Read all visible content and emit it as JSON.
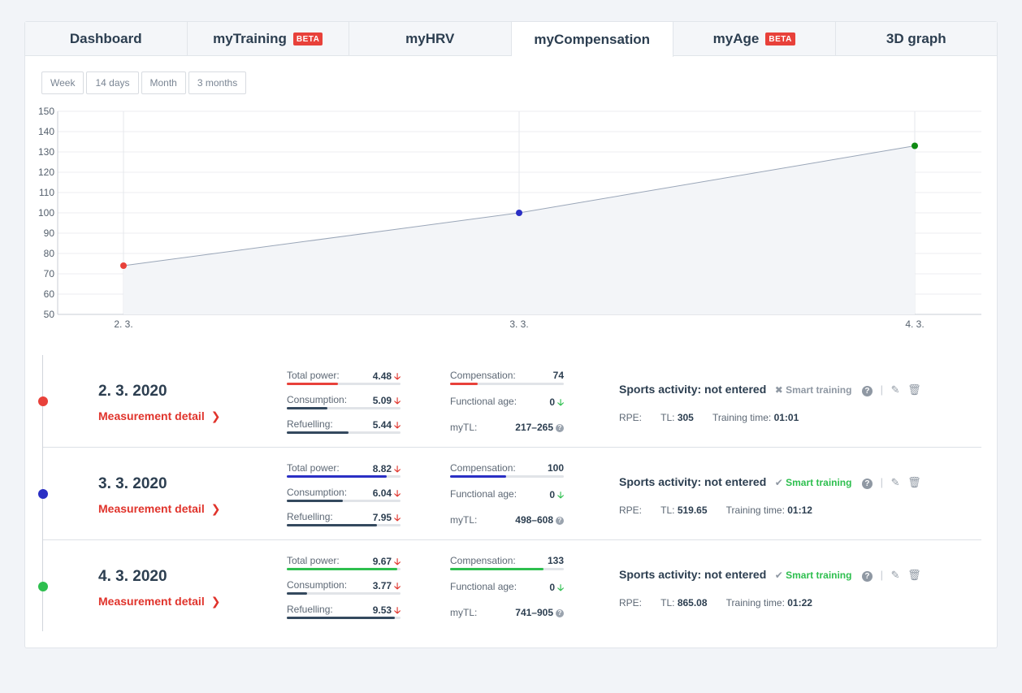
{
  "tabs": [
    {
      "label": "Dashboard",
      "beta": false,
      "active": false
    },
    {
      "label": "myTraining",
      "beta": true,
      "active": false
    },
    {
      "label": "myHRV",
      "beta": false,
      "active": false
    },
    {
      "label": "myCompensation",
      "beta": false,
      "active": true
    },
    {
      "label": "myAge",
      "beta": true,
      "active": false
    },
    {
      "label": "3D graph",
      "beta": false,
      "active": false
    }
  ],
  "beta_label": "BETA",
  "ranges": [
    "Week",
    "14 days",
    "Month",
    "3 months"
  ],
  "chart_data": {
    "type": "area",
    "categories": [
      "2. 3.",
      "3. 3.",
      "4. 3."
    ],
    "values": [
      74,
      100,
      133
    ],
    "point_colors": [
      "#e8413a",
      "#2a2fc4",
      "#0f8a12"
    ],
    "ylim": [
      50,
      150
    ],
    "yticks": [
      50,
      60,
      70,
      80,
      90,
      100,
      110,
      120,
      130,
      140,
      150
    ],
    "grid": true,
    "line_color": "#9aa6b8",
    "fill_color": "#f3f5f8"
  },
  "measurement_detail_label": "Measurement detail",
  "labels": {
    "total_power": "Total power:",
    "consumption": "Consumption:",
    "refuelling": "Refuelling:",
    "compensation": "Compensation:",
    "functional_age": "Functional age:",
    "mytl": "myTL:",
    "sports_activity": "Sports activity: not entered",
    "smart_training": "Smart training",
    "rpe": "RPE:",
    "tl": "TL:",
    "training_time": "Training time:"
  },
  "measurements": [
    {
      "date": "2. 3. 2020",
      "color": "#e8413a",
      "total_power": "4.48",
      "total_power_pct": 0.45,
      "consumption": "5.09",
      "consumption_pct": 0.36,
      "refuelling": "5.44",
      "refuelling_pct": 0.54,
      "compensation": "74",
      "compensation_pct": 0.24,
      "functional_age": "0",
      "mytl": "217–265",
      "smart_training_enabled": false,
      "tl": "305",
      "training_time": "01:01"
    },
    {
      "date": "3. 3. 2020",
      "color": "#2a2fc4",
      "total_power": "8.82",
      "total_power_pct": 0.88,
      "consumption": "6.04",
      "consumption_pct": 0.49,
      "refuelling": "7.95",
      "refuelling_pct": 0.79,
      "compensation": "100",
      "compensation_pct": 0.49,
      "functional_age": "0",
      "mytl": "498–608",
      "smart_training_enabled": true,
      "tl": "519.65",
      "training_time": "01:12"
    },
    {
      "date": "4. 3. 2020",
      "color": "#2ebf4f",
      "total_power": "9.67",
      "total_power_pct": 0.97,
      "consumption": "3.77",
      "consumption_pct": 0.18,
      "refuelling": "9.53",
      "refuelling_pct": 0.95,
      "compensation": "133",
      "compensation_pct": 0.82,
      "functional_age": "0",
      "mytl": "741–905",
      "smart_training_enabled": true,
      "tl": "865.08",
      "training_time": "01:22"
    }
  ]
}
